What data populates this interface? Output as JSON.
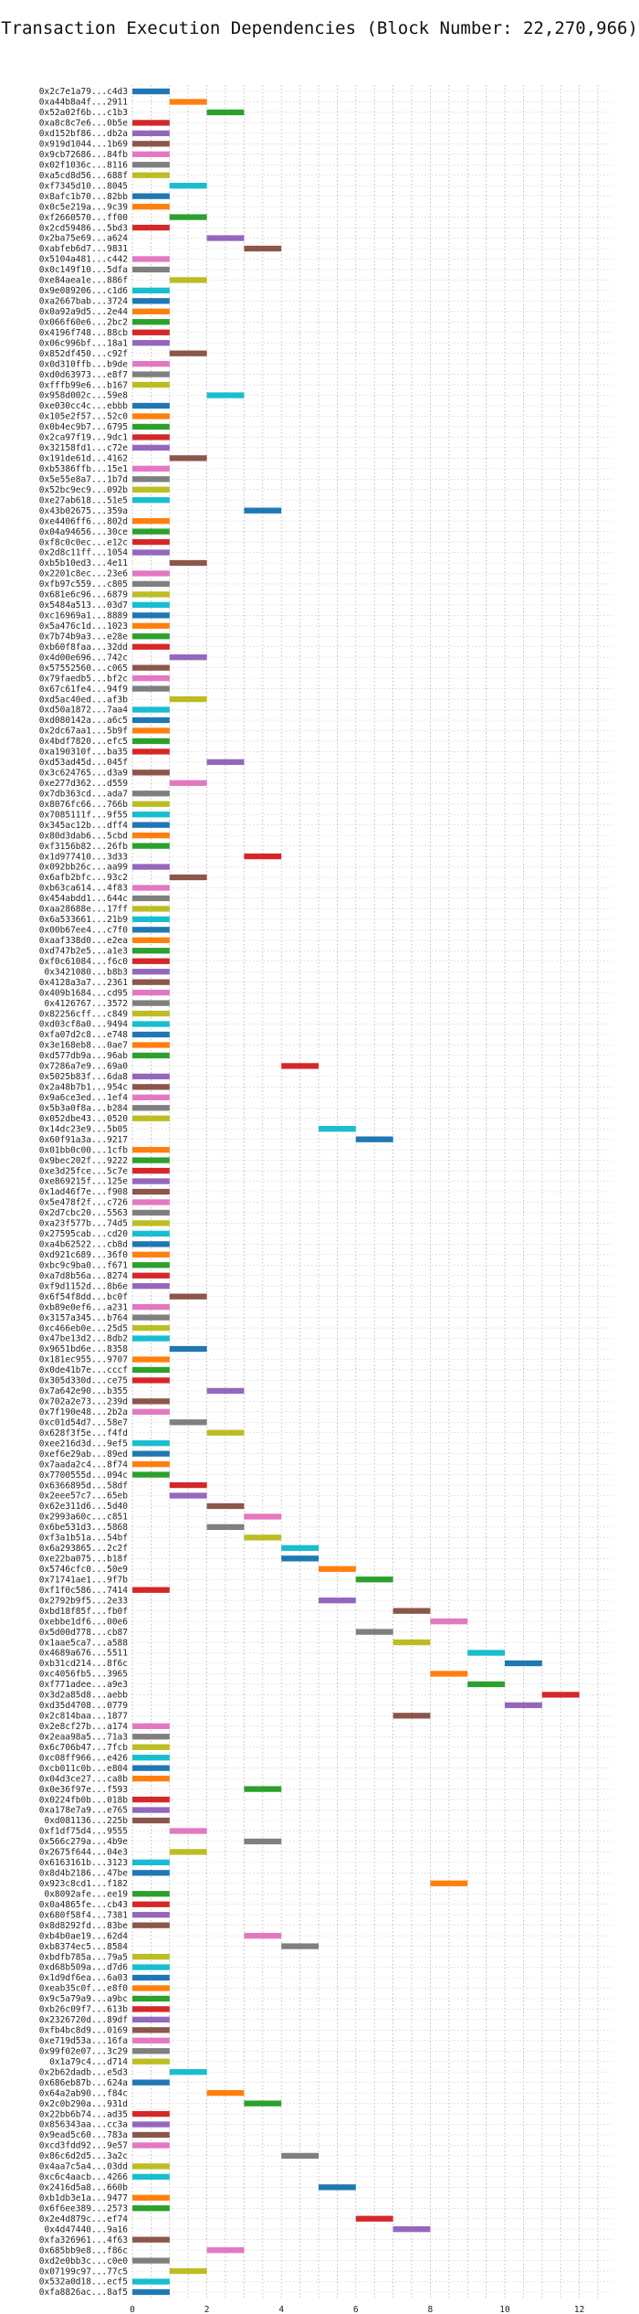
{
  "chart_data": {
    "type": "bar",
    "orientation": "horizontal",
    "title": "Transaction Execution Dependencies (Block Number: 22,270,966)",
    "xlabel": "",
    "ylabel": "",
    "xlim": [
      0,
      12.5
    ],
    "xticks": [
      0,
      2,
      4,
      6,
      8,
      10,
      12
    ],
    "grid": true,
    "grid_style": "dotted",
    "bar_width_units": 1,
    "palette": [
      "#1f77b4",
      "#ff7f0e",
      "#2ca02c",
      "#d62728",
      "#9467bd",
      "#8c564b",
      "#e377c2",
      "#7f7f7f",
      "#bcbd22",
      "#17becf"
    ],
    "transactions": [
      {
        "hash": "0x2c7e1a79...c4d3",
        "start": 0
      },
      {
        "hash": "0xa44b8a4f...2911",
        "start": 1
      },
      {
        "hash": "0x52a02f6b...c1b3",
        "start": 2
      },
      {
        "hash": "0xa8c8c7e6...0b5e",
        "start": 0
      },
      {
        "hash": "0xd152bf86...db2a",
        "start": 0
      },
      {
        "hash": "0x919d1044...1b69",
        "start": 0
      },
      {
        "hash": "0x9cb72686...84fb",
        "start": 0
      },
      {
        "hash": "0x02f1036c...8116",
        "start": 0
      },
      {
        "hash": "0xa5cd8d56...688f",
        "start": 0
      },
      {
        "hash": "0xf7345d10...8045",
        "start": 1
      },
      {
        "hash": "0x8afc1b70...82bb",
        "start": 0
      },
      {
        "hash": "0x0c5e219a...9c39",
        "start": 0
      },
      {
        "hash": "0xf2660570...ff00",
        "start": 1
      },
      {
        "hash": "0x2cd59486...5bd3",
        "start": 0
      },
      {
        "hash": "0x2ba75e69...a624",
        "start": 2
      },
      {
        "hash": "0xabfeb6d7...9831",
        "start": 3
      },
      {
        "hash": "0x5104a481...c442",
        "start": 0
      },
      {
        "hash": "0x0c149f10...5dfa",
        "start": 0
      },
      {
        "hash": "0xe84aea1e...886f",
        "start": 1
      },
      {
        "hash": "0x9e089206...c1d6",
        "start": 0
      },
      {
        "hash": "0xa2667bab...3724",
        "start": 0
      },
      {
        "hash": "0x0a92a9d5...2e44",
        "start": 0
      },
      {
        "hash": "0x066f60e6...2bc2",
        "start": 0
      },
      {
        "hash": "0x4196f748...88cb",
        "start": 0
      },
      {
        "hash": "0x06c996bf...18a1",
        "start": 0
      },
      {
        "hash": "0x852df450...c92f",
        "start": 1
      },
      {
        "hash": "0x0d310ffb...b9de",
        "start": 0
      },
      {
        "hash": "0xd0d63973...e8f7",
        "start": 0
      },
      {
        "hash": "0xfffb99e6...b167",
        "start": 0
      },
      {
        "hash": "0x958d002c...59e8",
        "start": 2
      },
      {
        "hash": "0xe030cc4c...ebbb",
        "start": 0
      },
      {
        "hash": "0x105e2f57...52c0",
        "start": 0
      },
      {
        "hash": "0x0b4ec9b7...6795",
        "start": 0
      },
      {
        "hash": "0x2ca97f19...9dc1",
        "start": 0
      },
      {
        "hash": "0x32158fd1...c72e",
        "start": 0
      },
      {
        "hash": "0x191de61d...4162",
        "start": 1
      },
      {
        "hash": "0xb5386ffb...15e1",
        "start": 0
      },
      {
        "hash": "0x5e55e8a7...1b7d",
        "start": 0
      },
      {
        "hash": "0x52bc9ec9...092b",
        "start": 0
      },
      {
        "hash": "0xe27ab618...51e5",
        "start": 0
      },
      {
        "hash": "0x43b02675...359a",
        "start": 3
      },
      {
        "hash": "0xe4406ff6...802d",
        "start": 0
      },
      {
        "hash": "0x04a94656...30ce",
        "start": 0
      },
      {
        "hash": "0xf8c0c0ec...e12c",
        "start": 0
      },
      {
        "hash": "0x2d8c11ff...1054",
        "start": 0
      },
      {
        "hash": "0xb5b10ed3...4e11",
        "start": 1
      },
      {
        "hash": "0x2201c8ec...23e6",
        "start": 0
      },
      {
        "hash": "0xfb97c559...c805",
        "start": 0
      },
      {
        "hash": "0x681e6c96...6879",
        "start": 0
      },
      {
        "hash": "0x5484a513...03d7",
        "start": 0
      },
      {
        "hash": "0xc16969a1...8889",
        "start": 0
      },
      {
        "hash": "0x5a476c1d...1023",
        "start": 0
      },
      {
        "hash": "0x7b74b9a3...e28e",
        "start": 0
      },
      {
        "hash": "0xb60f8faa...32dd",
        "start": 0
      },
      {
        "hash": "0x4d00e696...742c",
        "start": 1
      },
      {
        "hash": "0x57552560...c065",
        "start": 0
      },
      {
        "hash": "0x79faedb5...bf2c",
        "start": 0
      },
      {
        "hash": "0x67c61fe4...94f9",
        "start": 0
      },
      {
        "hash": "0xd5ac40ed...af3b",
        "start": 1
      },
      {
        "hash": "0xd50a1872...7aa4",
        "start": 0
      },
      {
        "hash": "0xd080142a...a6c5",
        "start": 0
      },
      {
        "hash": "0x2dc67aa1...5b9f",
        "start": 0
      },
      {
        "hash": "0x4bdf7820...efc5",
        "start": 0
      },
      {
        "hash": "0xa190310f...ba35",
        "start": 0
      },
      {
        "hash": "0xd53ad45d...045f",
        "start": 2
      },
      {
        "hash": "0x3c624765...d3a9",
        "start": 0
      },
      {
        "hash": "0xe277d362...d559",
        "start": 1
      },
      {
        "hash": "0x7db363cd...ada7",
        "start": 0
      },
      {
        "hash": "0x8076fc66...766b",
        "start": 0
      },
      {
        "hash": "0x7085111f...9f55",
        "start": 0
      },
      {
        "hash": "0x345ac12b...dff4",
        "start": 0
      },
      {
        "hash": "0x80d3dab6...5cbd",
        "start": 0
      },
      {
        "hash": "0xf3156b82...26fb",
        "start": 0
      },
      {
        "hash": "0x1d977410...3d33",
        "start": 3
      },
      {
        "hash": "0x092bb26c...aa99",
        "start": 0
      },
      {
        "hash": "0x6afb2bfc...93c2",
        "start": 1
      },
      {
        "hash": "0xb63ca614...4f83",
        "start": 0
      },
      {
        "hash": "0x454abdd1...644c",
        "start": 0
      },
      {
        "hash": "0xaa28688e...17ff",
        "start": 0
      },
      {
        "hash": "0x6a533661...21b9",
        "start": 0
      },
      {
        "hash": "0x00b67ee4...c7f0",
        "start": 0
      },
      {
        "hash": "0xaaf338d0...e2ea",
        "start": 0
      },
      {
        "hash": "0xd747b2e5...a1e3",
        "start": 0
      },
      {
        "hash": "0xf0c61084...f6c0",
        "start": 0
      },
      {
        "hash": "0x3421080...b8b3",
        "start": 0
      },
      {
        "hash": "0x4128a3a7...2361",
        "start": 0
      },
      {
        "hash": "0x409b1684...cd95",
        "start": 0
      },
      {
        "hash": "0x4126767...3572",
        "start": 0
      },
      {
        "hash": "0x82256cff...c849",
        "start": 0
      },
      {
        "hash": "0xd03cf8a0...9494",
        "start": 0
      },
      {
        "hash": "0xfa07d2c8...e748",
        "start": 0
      },
      {
        "hash": "0x3e168eb8...0ae7",
        "start": 0
      },
      {
        "hash": "0xd577db9a...96ab",
        "start": 0
      },
      {
        "hash": "0x7286a7e9...69a0",
        "start": 4
      },
      {
        "hash": "0x5025b83f...6da8",
        "start": 0
      },
      {
        "hash": "0x2a48b7b1...954c",
        "start": 0
      },
      {
        "hash": "0x9a6ce3ed...1ef4",
        "start": 0
      },
      {
        "hash": "0x5b3a0f8a...b284",
        "start": 0
      },
      {
        "hash": "0x052dbe43...0520",
        "start": 0
      },
      {
        "hash": "0x14dc23e9...5b05",
        "start": 5
      },
      {
        "hash": "0x60f91a3a...9217",
        "start": 6
      },
      {
        "hash": "0x01bb0c00...1cfb",
        "start": 0
      },
      {
        "hash": "0x9bec202f...9222",
        "start": 0
      },
      {
        "hash": "0xe3d25fce...5c7e",
        "start": 0
      },
      {
        "hash": "0xe869215f...125e",
        "start": 0
      },
      {
        "hash": "0x1ad46f7e...f908",
        "start": 0
      },
      {
        "hash": "0x5e478f2f...c726",
        "start": 0
      },
      {
        "hash": "0x2d7cbc20...5563",
        "start": 0
      },
      {
        "hash": "0xa23f577b...74d5",
        "start": 0
      },
      {
        "hash": "0x27595cab...cd20",
        "start": 0
      },
      {
        "hash": "0xa4b62522...cb8d",
        "start": 0
      },
      {
        "hash": "0xd921c689...36f0",
        "start": 0
      },
      {
        "hash": "0xbc9c9ba0...f671",
        "start": 0
      },
      {
        "hash": "0xa7d8b56a...8274",
        "start": 0
      },
      {
        "hash": "0xf9d1152d...8b6e",
        "start": 0
      },
      {
        "hash": "0x6f54f8dd...bc0f",
        "start": 1
      },
      {
        "hash": "0xb89e0ef6...a231",
        "start": 0
      },
      {
        "hash": "0x3157a345...b764",
        "start": 0
      },
      {
        "hash": "0xc466eb0e...25d5",
        "start": 0
      },
      {
        "hash": "0x47be13d2...8db2",
        "start": 0
      },
      {
        "hash": "0x9651bd6e...8358",
        "start": 1
      },
      {
        "hash": "0x181ec955...9707",
        "start": 0
      },
      {
        "hash": "0x0de41b7e...cccf",
        "start": 0
      },
      {
        "hash": "0x305d330d...ce75",
        "start": 0
      },
      {
        "hash": "0x7a642e90...b355",
        "start": 2
      },
      {
        "hash": "0x702a2e73...239d",
        "start": 0
      },
      {
        "hash": "0x7f190e48...2b2a",
        "start": 0
      },
      {
        "hash": "0xc01d54d7...58e7",
        "start": 1
      },
      {
        "hash": "0x628f3f5e...f4fd",
        "start": 2
      },
      {
        "hash": "0xee216d3d...9ef5",
        "start": 0
      },
      {
        "hash": "0xef6e29ab...89ed",
        "start": 0
      },
      {
        "hash": "0x7aada2c4...8f74",
        "start": 0
      },
      {
        "hash": "0x7700555d...094c",
        "start": 0
      },
      {
        "hash": "0x6366895d...58df",
        "start": 1
      },
      {
        "hash": "0x2eee57c7...65eb",
        "start": 1
      },
      {
        "hash": "0x62e311d6...5d40",
        "start": 2
      },
      {
        "hash": "0x2993a60c...c851",
        "start": 3
      },
      {
        "hash": "0x6be531d3...5868",
        "start": 2
      },
      {
        "hash": "0xf3a1b51a...54bf",
        "start": 3
      },
      {
        "hash": "0x6a293865...2c2f",
        "start": 4
      },
      {
        "hash": "0xe22ba075...b18f",
        "start": 4
      },
      {
        "hash": "0x5746cfc0...50e9",
        "start": 5
      },
      {
        "hash": "0x71741ae1...9f7b",
        "start": 6
      },
      {
        "hash": "0xf1f0c586...7414",
        "start": 0
      },
      {
        "hash": "0x2792b9f5...2e33",
        "start": 5
      },
      {
        "hash": "0xbd18f85f...fb0f",
        "start": 7
      },
      {
        "hash": "0xebbe1df6...00e6",
        "start": 8
      },
      {
        "hash": "0x5d00d778...cb87",
        "start": 6
      },
      {
        "hash": "0x1aae5ca7...a588",
        "start": 7
      },
      {
        "hash": "0x4689a676...5511",
        "start": 9
      },
      {
        "hash": "0xb31cd214...8f6c",
        "start": 10
      },
      {
        "hash": "0xc4056fb5...3965",
        "start": 8
      },
      {
        "hash": "0xf771adee...a9e3",
        "start": 9
      },
      {
        "hash": "0x3d2a85d8...aebb",
        "start": 11
      },
      {
        "hash": "0xd35d4708...0779",
        "start": 10
      },
      {
        "hash": "0x2c814baa...1877",
        "start": 7
      },
      {
        "hash": "0x2e8cf27b...a174",
        "start": 0
      },
      {
        "hash": "0x2eaa98a5...71a3",
        "start": 0
      },
      {
        "hash": "0x6c706b47...7fcb",
        "start": 0
      },
      {
        "hash": "0xc08ff966...e426",
        "start": 0
      },
      {
        "hash": "0xcb011c0b...e804",
        "start": 0
      },
      {
        "hash": "0x04d3ce27...ca8b",
        "start": 0
      },
      {
        "hash": "0x0e36f97e...f593",
        "start": 3
      },
      {
        "hash": "0x0224fb0b...018b",
        "start": 0
      },
      {
        "hash": "0xa178e7a9...e765",
        "start": 0
      },
      {
        "hash": "0xd081136...225b",
        "start": 0
      },
      {
        "hash": "0xf1df75d4...9555",
        "start": 1
      },
      {
        "hash": "0x566c279a...4b9e",
        "start": 3
      },
      {
        "hash": "0x2675f644...04e3",
        "start": 1
      },
      {
        "hash": "0x6163161b...3123",
        "start": 0
      },
      {
        "hash": "0x8d4b2186...47be",
        "start": 0
      },
      {
        "hash": "0x923c8cd1...f182",
        "start": 8
      },
      {
        "hash": "0x8092afe...ee19",
        "start": 0
      },
      {
        "hash": "0x0a4865fe...cb43",
        "start": 0
      },
      {
        "hash": "0x680f58f4...7381",
        "start": 0
      },
      {
        "hash": "0x8d8292fd...83be",
        "start": 0
      },
      {
        "hash": "0xb4b0ae19...62d4",
        "start": 3
      },
      {
        "hash": "0xb8374ec5...8584",
        "start": 4
      },
      {
        "hash": "0xbdfb785a...79a5",
        "start": 0
      },
      {
        "hash": "0xd68b509a...d7d6",
        "start": 0
      },
      {
        "hash": "0x1d9df6ea...6a03",
        "start": 0
      },
      {
        "hash": "0xeab35c0f...e8f0",
        "start": 0
      },
      {
        "hash": "0x9c5a79a9...a9bc",
        "start": 0
      },
      {
        "hash": "0xb26c09f7...613b",
        "start": 0
      },
      {
        "hash": "0x2326720d...89df",
        "start": 0
      },
      {
        "hash": "0xfb4bc8d9...0169",
        "start": 0
      },
      {
        "hash": "0xe719d53a...16fa",
        "start": 0
      },
      {
        "hash": "0x99f02e07...3c29",
        "start": 0
      },
      {
        "hash": "0x1a79c4...d714",
        "start": 0
      },
      {
        "hash": "0x2b62dadb...e5d3",
        "start": 1
      },
      {
        "hash": "0x686eb87b...624a",
        "start": 0
      },
      {
        "hash": "0x64a2ab90...f84c",
        "start": 2
      },
      {
        "hash": "0x2c0b290a...931d",
        "start": 3
      },
      {
        "hash": "0x22bb6b74...ad35",
        "start": 0
      },
      {
        "hash": "0x856343aa...cc3a",
        "start": 0
      },
      {
        "hash": "0x9ead5c60...783a",
        "start": 0
      },
      {
        "hash": "0xcd3fdd92...9e57",
        "start": 0
      },
      {
        "hash": "0x86c6d2d5...3a2c",
        "start": 4
      },
      {
        "hash": "0x4aa7c5a4...03dd",
        "start": 0
      },
      {
        "hash": "0xc6c4aacb...4266",
        "start": 0
      },
      {
        "hash": "0x2416d5a8...660b",
        "start": 5
      },
      {
        "hash": "0xb1db3e1a...9477",
        "start": 0
      },
      {
        "hash": "0x6f6ee389...2573",
        "start": 0
      },
      {
        "hash": "0x2e4d879c...ef74",
        "start": 6
      },
      {
        "hash": "0x4d47440...9a16",
        "start": 7
      },
      {
        "hash": "0xfa326961...4f63",
        "start": 0
      },
      {
        "hash": "0x685bb9e8...f86c",
        "start": 2
      },
      {
        "hash": "0xd2e0bb3c...c0e0",
        "start": 0
      },
      {
        "hash": "0x07199c97...77c5",
        "start": 1
      },
      {
        "hash": "0x532a0d18...ecf5",
        "start": 0
      },
      {
        "hash": "0xfa8826ac...8af5",
        "start": 0
      }
    ]
  }
}
